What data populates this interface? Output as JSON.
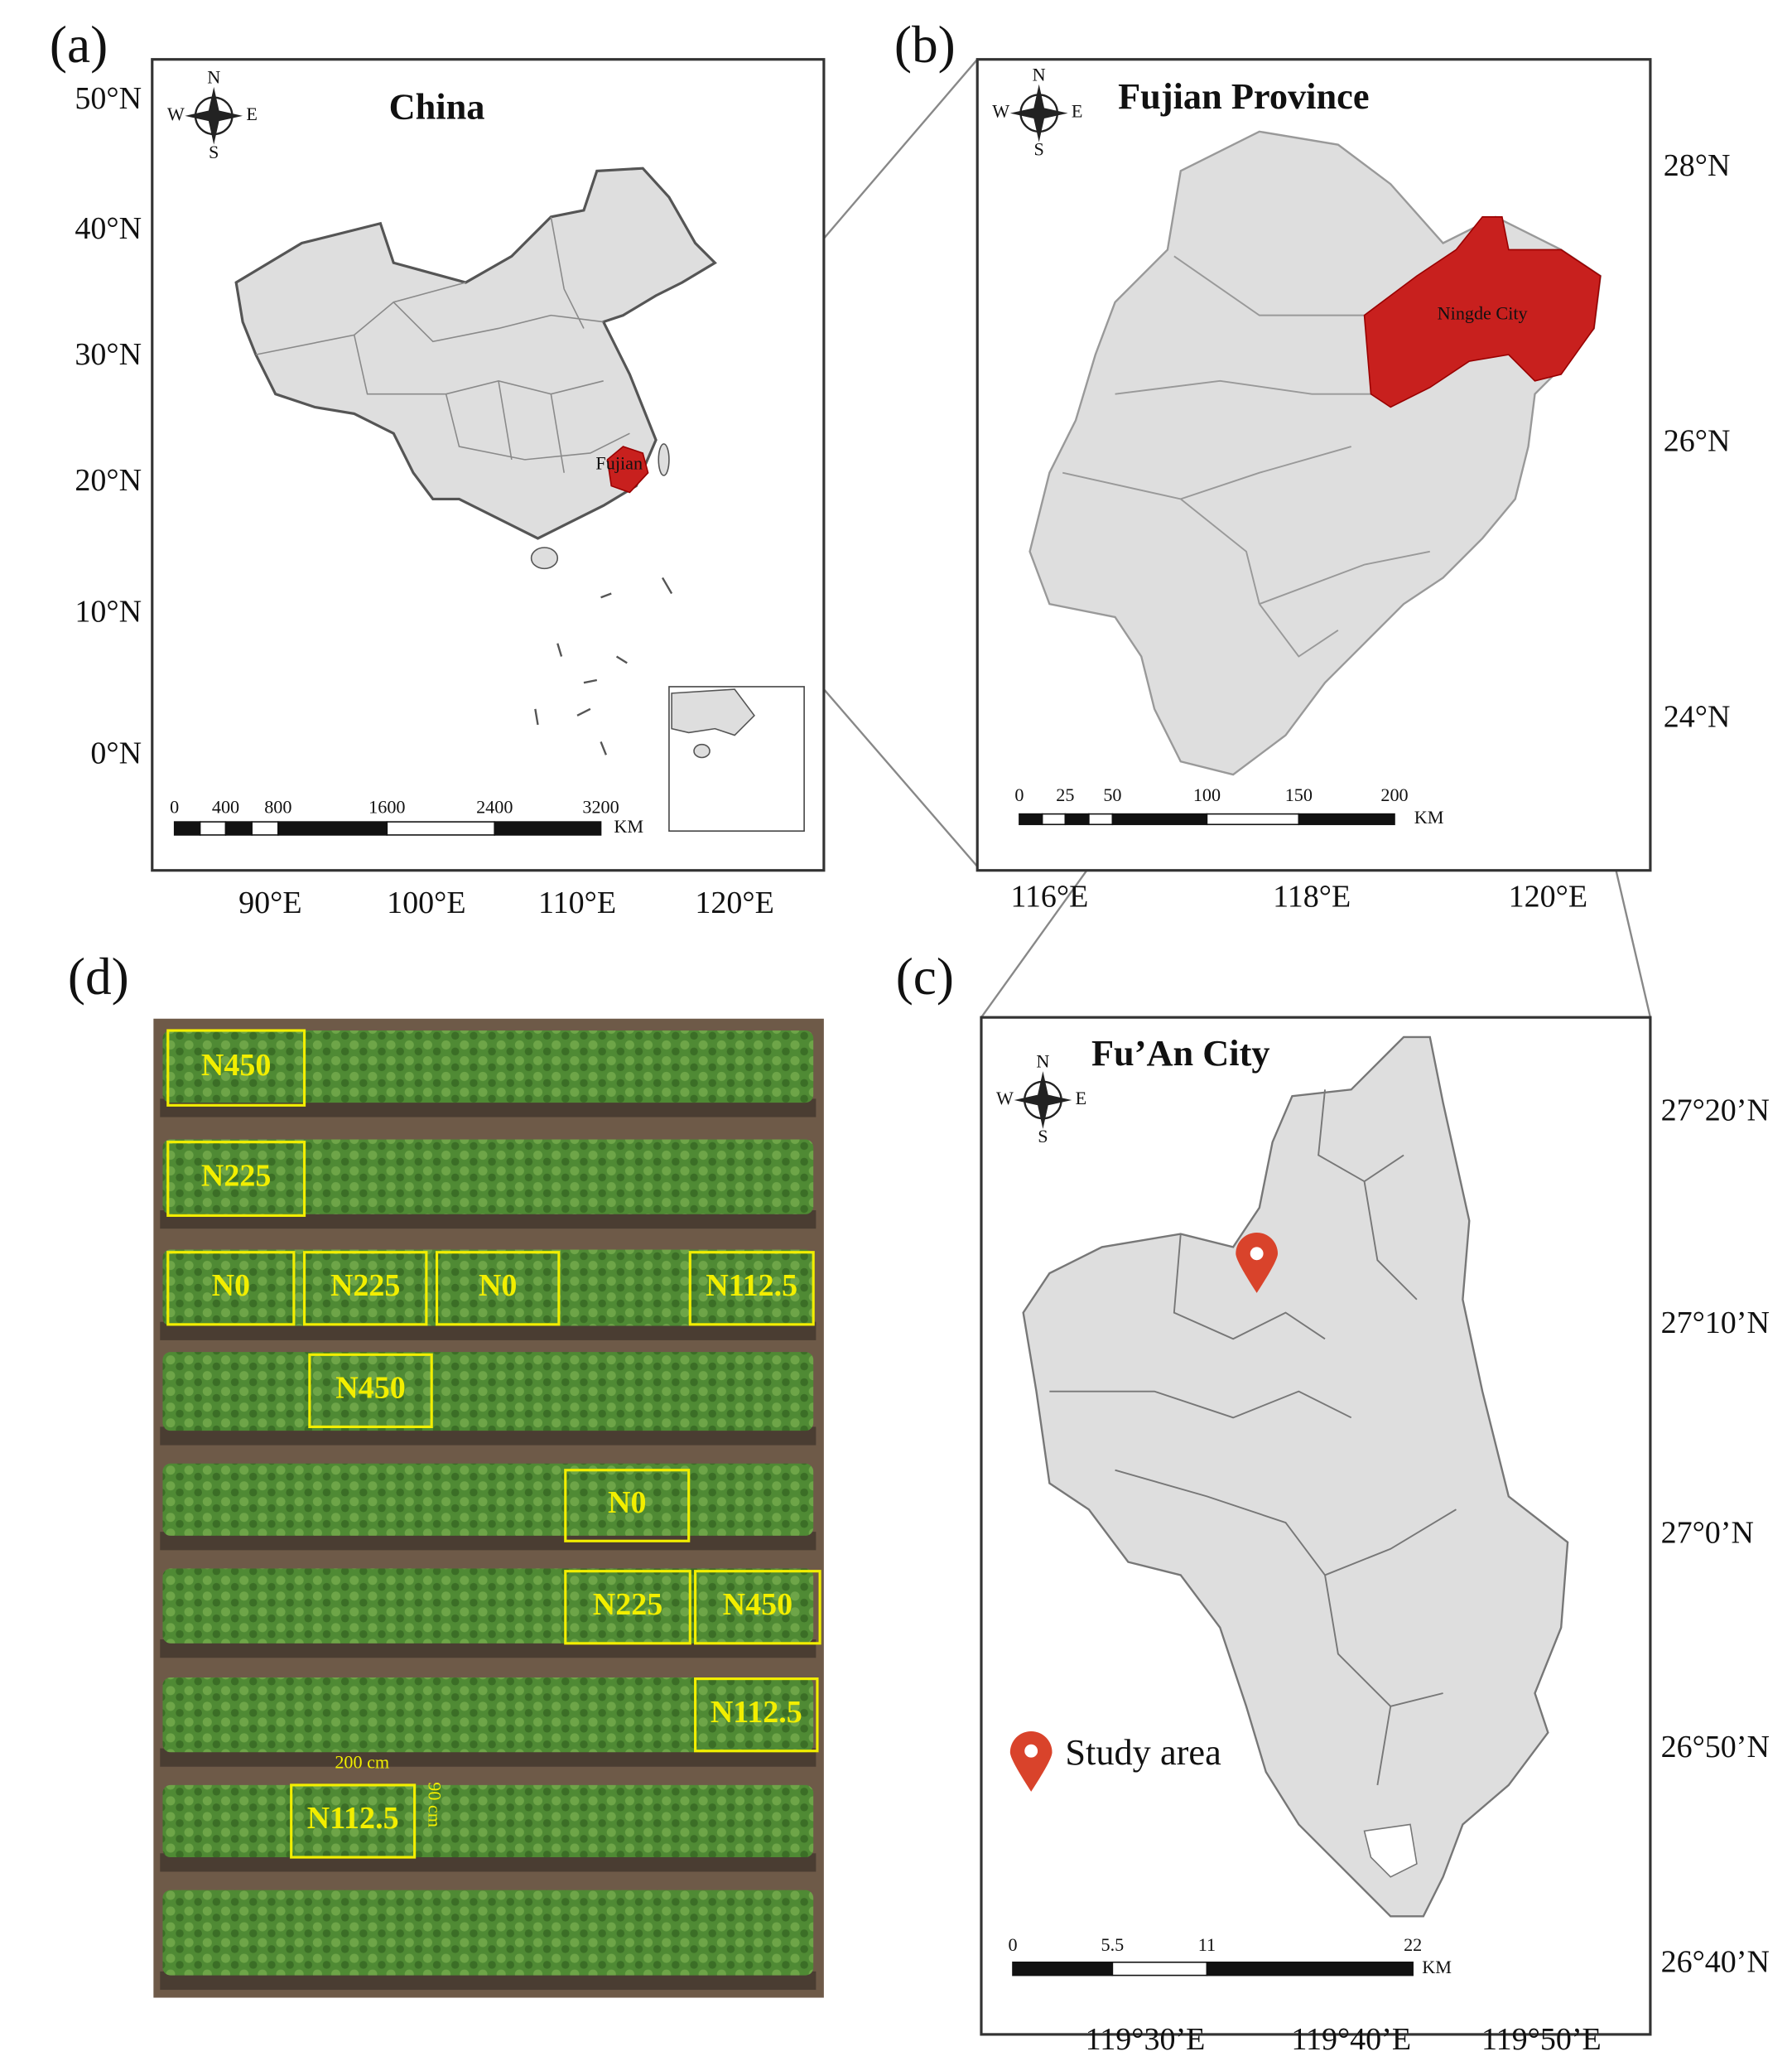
{
  "panels": {
    "a": {
      "label": "(a)",
      "title": "China",
      "compass": [
        "N",
        "S",
        "W",
        "E"
      ],
      "lat_ticks": [
        "50°N",
        "40°N",
        "30°N",
        "20°N",
        "10°N",
        "0°N"
      ],
      "lon_ticks": [
        "90°E",
        "100°E",
        "110°E",
        "120°E"
      ],
      "scale_ticks": [
        "0",
        "400",
        "800",
        "1600",
        "2400",
        "3200"
      ],
      "scale_unit": "KM",
      "region_label": "Fujian"
    },
    "b": {
      "label": "(b)",
      "title": "Fujian Province",
      "compass": [
        "N",
        "S",
        "W",
        "E"
      ],
      "lat_ticks": [
        "28°N",
        "26°N",
        "24°N"
      ],
      "lon_ticks": [
        "116°E",
        "118°E",
        "120°E"
      ],
      "scale_ticks": [
        "0",
        "25",
        "50",
        "100",
        "150",
        "200"
      ],
      "scale_unit": "KM",
      "region_label": "Ningde City"
    },
    "c": {
      "label": "(c)",
      "title": "Fu’An City",
      "compass": [
        "N",
        "S",
        "W",
        "E"
      ],
      "lat_ticks": [
        "27°20’N",
        "27°10’N",
        "27°0’N",
        "26°50’N",
        "26°40’N"
      ],
      "lon_ticks": [
        "119°30’E",
        "119°40’E",
        "119°50’E"
      ],
      "scale_ticks": [
        "0",
        "5.5",
        "11",
        "22"
      ],
      "scale_unit": "KM",
      "legend": "Study area"
    },
    "d": {
      "label": "(d)",
      "plots": [
        "N450",
        "N225",
        "N0",
        "N225",
        "N0",
        "N112.5",
        "N450",
        "N0",
        "N225",
        "N450",
        "N112.5",
        "N112.5"
      ],
      "plot_width": "200 cm",
      "plot_height": "90 cm"
    }
  }
}
